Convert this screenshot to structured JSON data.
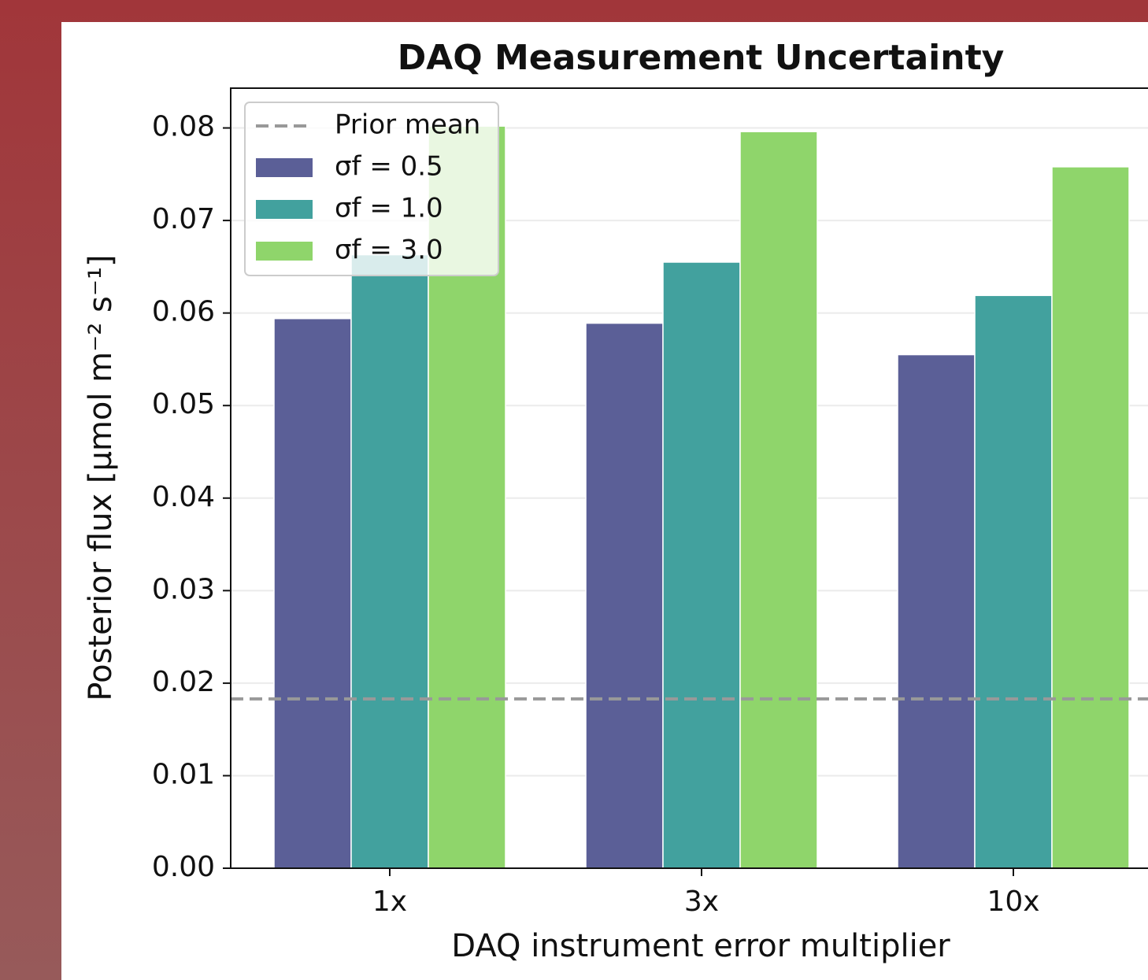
{
  "chart_data": {
    "type": "bar",
    "title": "DAQ Measurement Uncertainty",
    "x_label": "DAQ instrument error multiplier",
    "y_label": "Posterior flux [μmol m⁻² s⁻¹]",
    "categories": [
      "1x",
      "3x",
      "10x"
    ],
    "series": [
      {
        "name": "σf = 0.5",
        "color": "#5b5f97",
        "values": [
          0.0594,
          0.0589,
          0.0555
        ]
      },
      {
        "name": "σf = 1.0",
        "color": "#42a19e",
        "values": [
          0.0663,
          0.0655,
          0.0619
        ]
      },
      {
        "name": "σf = 3.0",
        "color": "#8fd56b",
        "values": [
          0.0802,
          0.0796,
          0.0758
        ]
      }
    ],
    "reference_line": {
      "name": "Prior mean",
      "value": 0.0183,
      "color": "#999999"
    },
    "ylim": [
      0,
      0.0843
    ],
    "yticks": [
      {
        "value": 0,
        "label": "0.00"
      },
      0.01,
      0.02,
      0.03,
      0.04,
      0.05,
      0.06,
      0.07,
      0.08
    ],
    "grid": true,
    "legend": "upper left"
  }
}
